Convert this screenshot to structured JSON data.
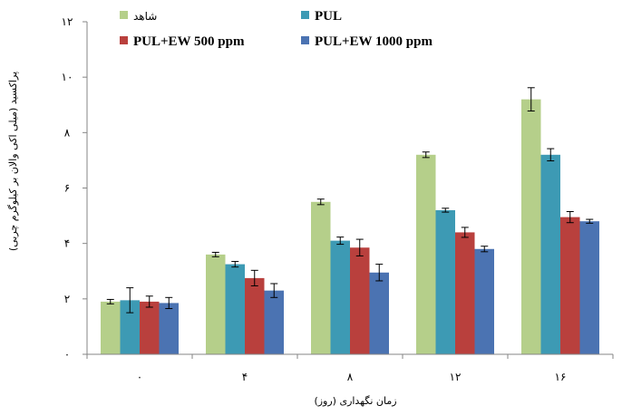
{
  "chart_data": {
    "type": "bar",
    "categories": [
      "۰",
      "۴",
      "۸",
      "۱۲",
      "۱۶"
    ],
    "series": [
      {
        "name": "شاهد",
        "color": "#b5cf8a",
        "values": [
          1.9,
          3.6,
          5.5,
          7.2,
          9.2
        ],
        "errors": [
          0.08,
          0.08,
          0.1,
          0.1,
          0.42
        ]
      },
      {
        "name": "PUL",
        "color": "#3d9ab4",
        "values": [
          1.95,
          3.25,
          4.1,
          5.2,
          7.2
        ],
        "errors": [
          0.45,
          0.1,
          0.13,
          0.07,
          0.22
        ]
      },
      {
        "name": "PUL+EW 500 ppm",
        "color": "#b9403d",
        "values": [
          1.9,
          2.75,
          3.85,
          4.4,
          4.95
        ],
        "errors": [
          0.2,
          0.28,
          0.3,
          0.18,
          0.2
        ]
      },
      {
        "name": "PUL+EW 1000 ppm",
        "color": "#4b73b2",
        "values": [
          1.85,
          2.3,
          2.95,
          3.8,
          4.8
        ],
        "errors": [
          0.2,
          0.25,
          0.3,
          0.1,
          0.07
        ]
      }
    ],
    "ylim": [
      0,
      12
    ],
    "yticks": [
      "۰",
      "۲",
      "۴",
      "۶",
      "۸",
      "۱۰",
      "۱۲"
    ],
    "xlabel": "زمان نگهداری (روز)",
    "ylabel": "پراکسید (میلی اکی والان بر کیلوگرم چربی)",
    "legend_position": "top",
    "grid": false
  }
}
